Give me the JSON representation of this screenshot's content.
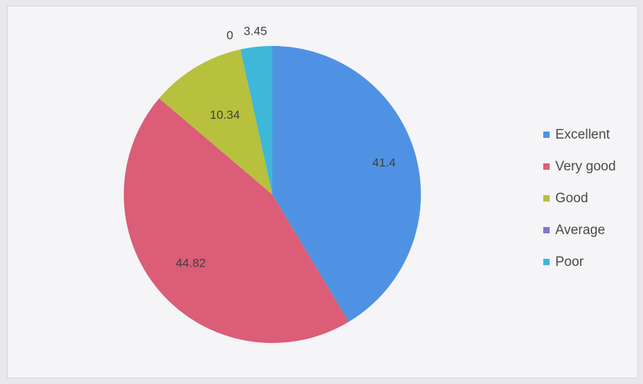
{
  "chart_data": {
    "type": "pie",
    "categories": [
      "Excellent",
      "Very good",
      "Good",
      "Average",
      "Poor"
    ],
    "values": [
      41.4,
      44.82,
      10.34,
      0,
      3.45
    ],
    "data_labels": [
      "41.4",
      "44.82",
      "10.34",
      "0",
      "3.45"
    ],
    "legend_placement": "right",
    "colors": [
      "#4f92e3",
      "#db5d78",
      "#b7c13d",
      "#8a73c9",
      "#3fb7d8"
    ]
  }
}
